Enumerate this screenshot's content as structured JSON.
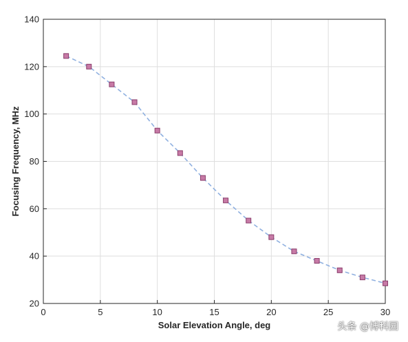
{
  "chart_data": {
    "type": "line",
    "title": "",
    "xlabel": "Solar Elevation Angle, deg",
    "ylabel": "Focusing Frequency, MHz",
    "xlim": [
      0,
      30
    ],
    "ylim": [
      20,
      140
    ],
    "xticks": [
      0,
      5,
      10,
      15,
      20,
      25,
      30
    ],
    "yticks": [
      20,
      40,
      60,
      80,
      100,
      120,
      140
    ],
    "grid": true,
    "series": [
      {
        "x": [
          2,
          4,
          6,
          8,
          10,
          12,
          14,
          16,
          18,
          20,
          22,
          24,
          26,
          28,
          30
        ],
        "y": [
          124.5,
          120,
          112.5,
          105,
          93,
          83.5,
          73,
          63.5,
          55,
          48,
          42,
          38,
          34,
          31,
          28.5
        ],
        "line_style": "dashed",
        "line_color": "#8fb0e0",
        "marker": "square",
        "marker_color": "#c77aa6",
        "marker_edge": "#8a3d6b"
      }
    ]
  },
  "watermark": "头条 @博科园"
}
